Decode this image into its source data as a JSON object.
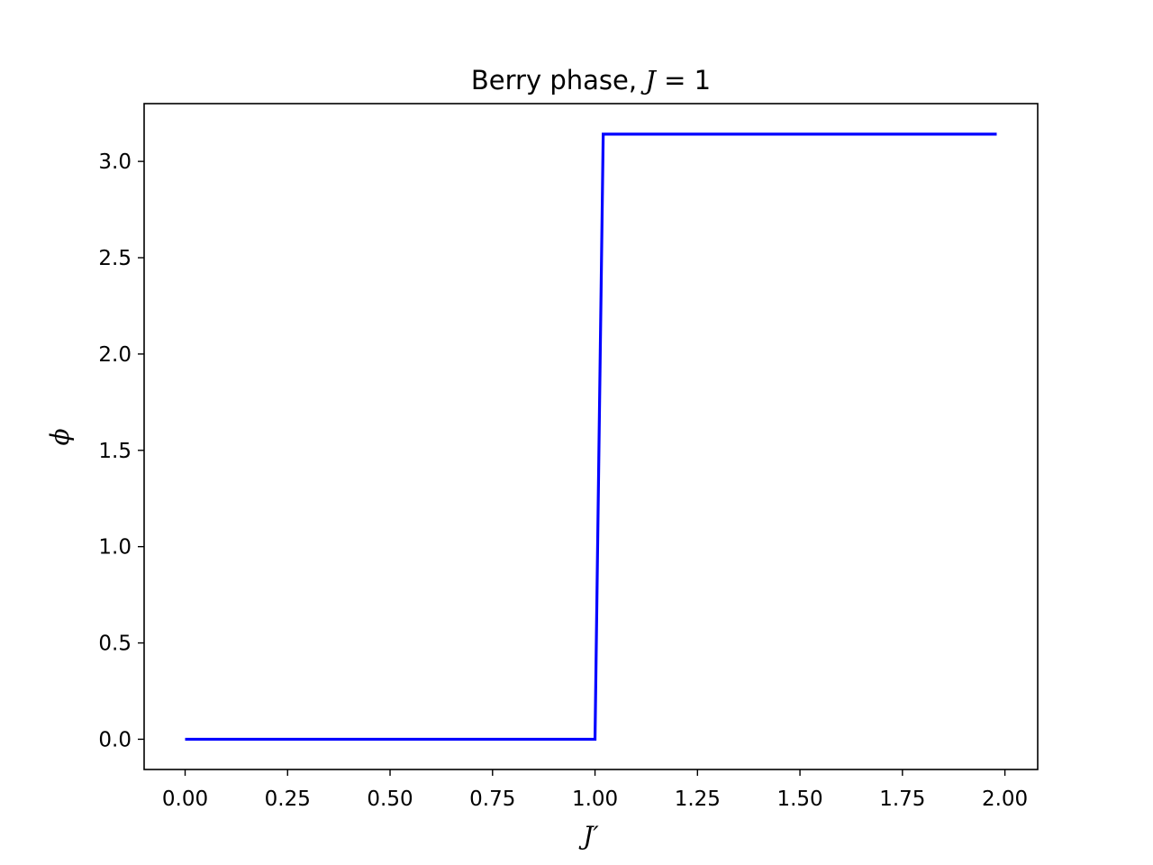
{
  "chart_data": {
    "type": "line",
    "title": "Berry phase, J = 1",
    "title_text": "Berry phase,",
    "title_math_var": "J",
    "title_math_rest": " = 1",
    "xlabel": "J′",
    "ylabel": "ϕ",
    "xlim": [
      -0.1,
      2.08
    ],
    "ylim": [
      -0.157,
      3.3
    ],
    "xticks": [
      0.0,
      0.25,
      0.5,
      0.75,
      1.0,
      1.25,
      1.5,
      1.75,
      2.0
    ],
    "xtick_labels": [
      "0.00",
      "0.25",
      "0.50",
      "0.75",
      "1.00",
      "1.25",
      "1.50",
      "1.75",
      "2.00"
    ],
    "yticks": [
      0.0,
      0.5,
      1.0,
      1.5,
      2.0,
      2.5,
      3.0
    ],
    "ytick_labels": [
      "0.0",
      "0.5",
      "1.0",
      "1.5",
      "2.0",
      "2.5",
      "3.0"
    ],
    "grid": false,
    "series": [
      {
        "color": "#0000ff",
        "x": [
          0.0,
          1.0,
          1.02,
          1.98
        ],
        "y": [
          0.0,
          0.0,
          3.1416,
          3.1416
        ]
      }
    ]
  }
}
